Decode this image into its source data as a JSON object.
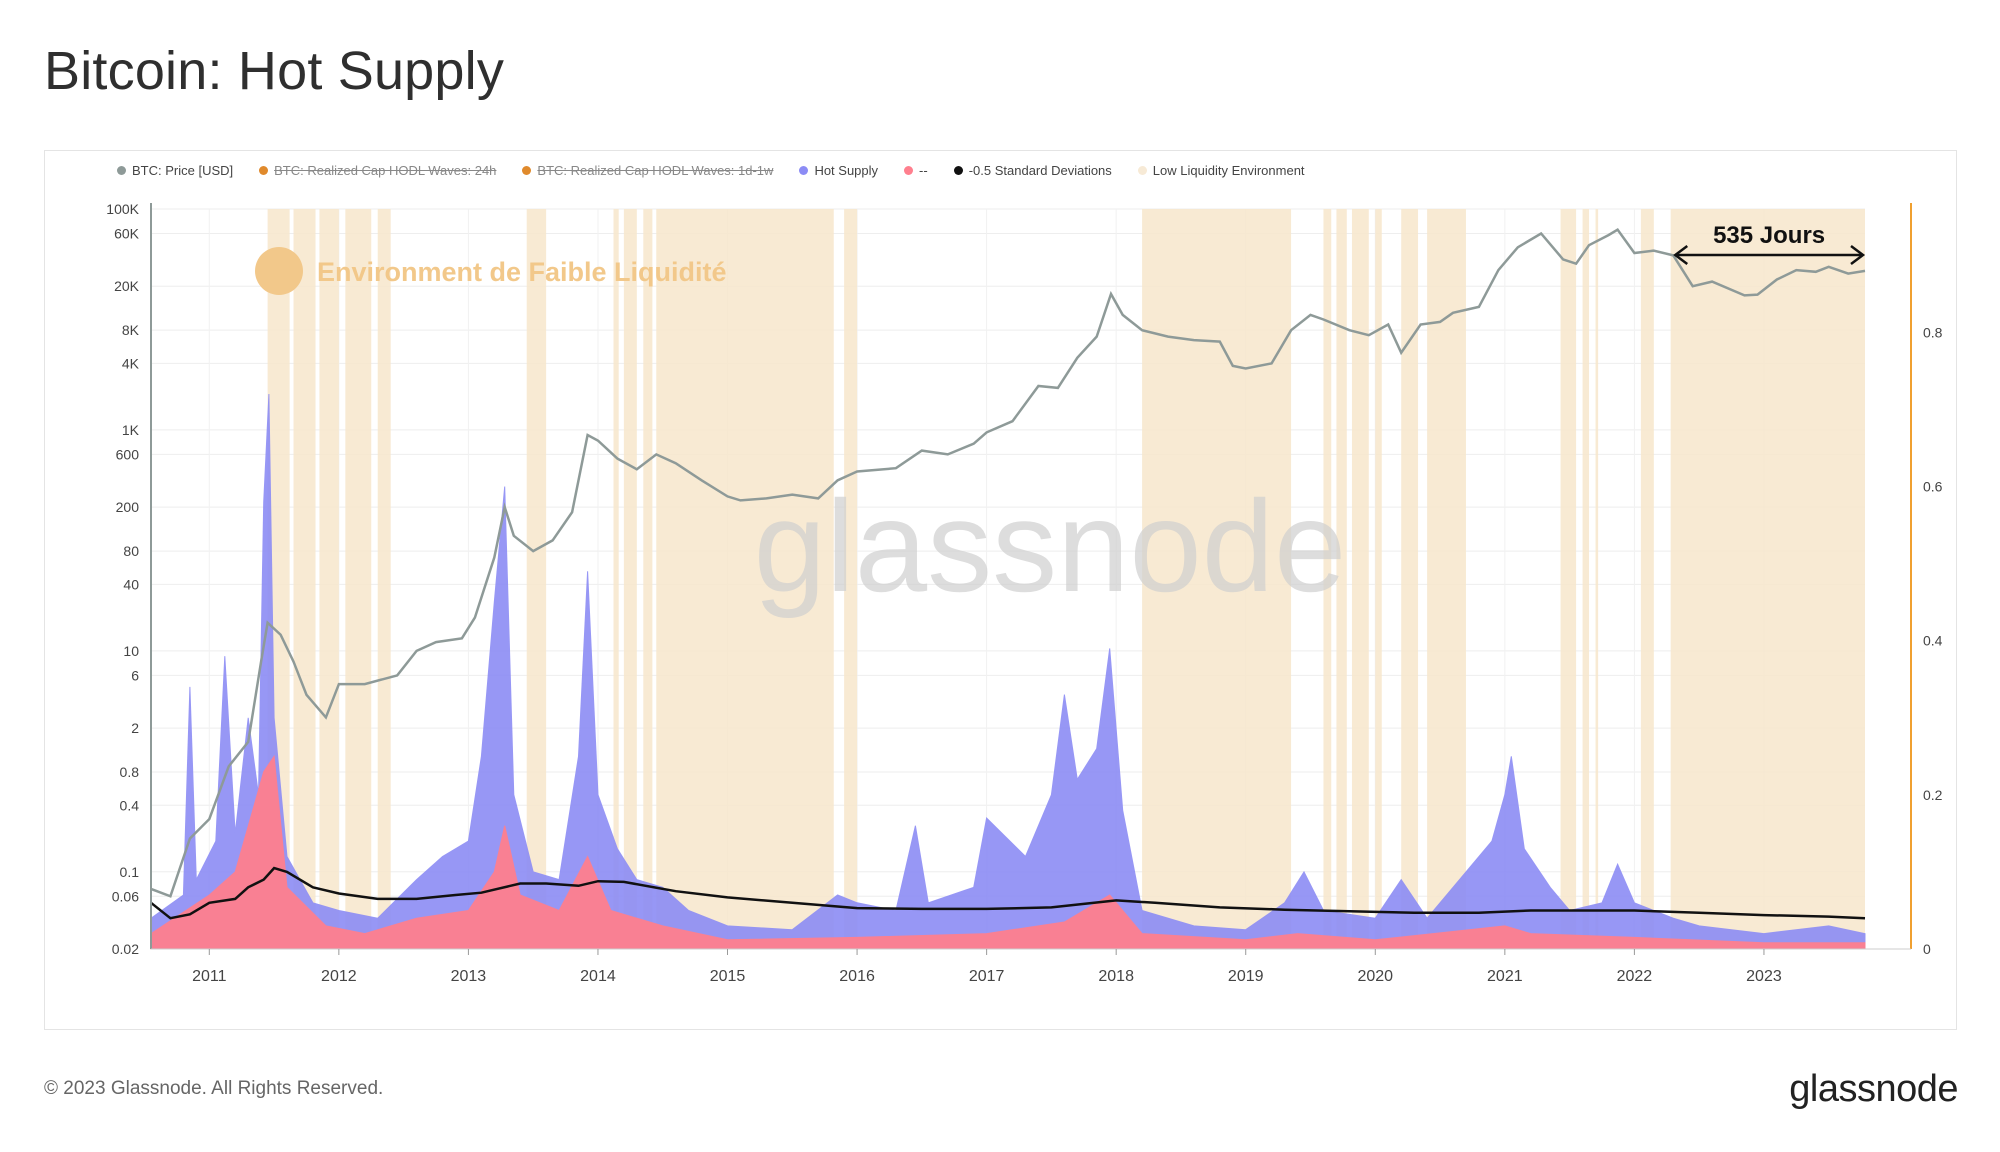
{
  "page": {
    "title": "Bitcoin: Hot Supply",
    "copyright": "© 2023 Glassnode. All Rights Reserved.",
    "logo": "glassnode",
    "watermark": "glassnode"
  },
  "legend": [
    {
      "label": "BTC: Price [USD]",
      "color": "#8e9a98",
      "disabled": false
    },
    {
      "label": "BTC: Realized Cap HODL Waves: 24h",
      "color": "#e08a2c",
      "disabled": true
    },
    {
      "label": "BTC: Realized Cap HODL Waves: 1d-1w",
      "color": "#e08a2c",
      "disabled": true
    },
    {
      "label": "Hot Supply",
      "color": "#8c8cf5",
      "disabled": false
    },
    {
      "label": "--",
      "color": "#ff7f8e",
      "disabled": false
    },
    {
      "label": "-0.5 Standard Deviations",
      "color": "#111111",
      "disabled": false
    },
    {
      "label": "Low Liquidity Environment",
      "color": "#f7ead6",
      "disabled": false
    }
  ],
  "annotations": {
    "low_liquidity_label": "Environment de Faible Liquidité",
    "duration_label": "535 Jours"
  },
  "chart_data": {
    "type": "line",
    "x_axis": {
      "ticks": [
        "2011",
        "2012",
        "2013",
        "2014",
        "2015",
        "2016",
        "2017",
        "2018",
        "2019",
        "2020",
        "2021",
        "2022",
        "2023"
      ],
      "range": [
        2010.55,
        2023.78
      ]
    },
    "y_left": {
      "scale": "log",
      "ticks": [
        "100K",
        "60K",
        "20K",
        "8K",
        "4K",
        "1K",
        "600",
        "200",
        "80",
        "40",
        "10",
        "6",
        "2",
        "0.8",
        "0.4",
        "0.1",
        "0.06",
        "0.02"
      ],
      "tick_values": [
        100000,
        60000,
        20000,
        8000,
        4000,
        1000,
        600,
        200,
        80,
        40,
        10,
        6,
        2,
        0.8,
        0.4,
        0.1,
        0.06,
        0.02
      ],
      "range": [
        0.02,
        100000
      ]
    },
    "y_right": {
      "ticks": [
        "0",
        "0.2",
        "0.4",
        "0.6",
        "0.8"
      ],
      "tick_values": [
        0,
        0.2,
        0.4,
        0.6,
        0.8
      ],
      "range": [
        0,
        0.96
      ]
    },
    "series": [
      {
        "name": "BTC: Price [USD]",
        "axis": "left",
        "color": "#8e9a98",
        "points": [
          [
            2010.55,
            0.07
          ],
          [
            2010.7,
            0.06
          ],
          [
            2010.85,
            0.2
          ],
          [
            2011.0,
            0.3
          ],
          [
            2011.15,
            0.9
          ],
          [
            2011.3,
            1.5
          ],
          [
            2011.4,
            8
          ],
          [
            2011.45,
            18
          ],
          [
            2011.55,
            14
          ],
          [
            2011.65,
            8
          ],
          [
            2011.75,
            4
          ],
          [
            2011.9,
            2.5
          ],
          [
            2012.0,
            5
          ],
          [
            2012.2,
            5
          ],
          [
            2012.45,
            6
          ],
          [
            2012.6,
            10
          ],
          [
            2012.75,
            12
          ],
          [
            2012.95,
            13
          ],
          [
            2013.05,
            20
          ],
          [
            2013.2,
            70
          ],
          [
            2013.28,
            200
          ],
          [
            2013.35,
            110
          ],
          [
            2013.5,
            80
          ],
          [
            2013.65,
            100
          ],
          [
            2013.8,
            180
          ],
          [
            2013.92,
            900
          ],
          [
            2014.0,
            800
          ],
          [
            2014.15,
            550
          ],
          [
            2014.3,
            440
          ],
          [
            2014.45,
            600
          ],
          [
            2014.6,
            500
          ],
          [
            2014.8,
            350
          ],
          [
            2015.0,
            250
          ],
          [
            2015.1,
            230
          ],
          [
            2015.3,
            240
          ],
          [
            2015.5,
            260
          ],
          [
            2015.7,
            240
          ],
          [
            2015.85,
            350
          ],
          [
            2016.0,
            420
          ],
          [
            2016.3,
            450
          ],
          [
            2016.5,
            650
          ],
          [
            2016.7,
            600
          ],
          [
            2016.9,
            750
          ],
          [
            2017.0,
            950
          ],
          [
            2017.2,
            1200
          ],
          [
            2017.4,
            2500
          ],
          [
            2017.55,
            2400
          ],
          [
            2017.7,
            4500
          ],
          [
            2017.85,
            7000
          ],
          [
            2017.96,
            17000
          ],
          [
            2018.05,
            11000
          ],
          [
            2018.2,
            8000
          ],
          [
            2018.4,
            7000
          ],
          [
            2018.6,
            6500
          ],
          [
            2018.8,
            6300
          ],
          [
            2018.9,
            3800
          ],
          [
            2019.0,
            3600
          ],
          [
            2019.2,
            4000
          ],
          [
            2019.35,
            8000
          ],
          [
            2019.5,
            11000
          ],
          [
            2019.6,
            10000
          ],
          [
            2019.8,
            8000
          ],
          [
            2019.95,
            7200
          ],
          [
            2020.1,
            9000
          ],
          [
            2020.2,
            5000
          ],
          [
            2020.35,
            9000
          ],
          [
            2020.5,
            9500
          ],
          [
            2020.6,
            11500
          ],
          [
            2020.8,
            13000
          ],
          [
            2020.95,
            28000
          ],
          [
            2021.1,
            45000
          ],
          [
            2021.28,
            60000
          ],
          [
            2021.45,
            35000
          ],
          [
            2021.55,
            32000
          ],
          [
            2021.65,
            47000
          ],
          [
            2021.8,
            58000
          ],
          [
            2021.87,
            65000
          ],
          [
            2022.0,
            40000
          ],
          [
            2022.15,
            42000
          ],
          [
            2022.3,
            38000
          ],
          [
            2022.45,
            20000
          ],
          [
            2022.6,
            22000
          ],
          [
            2022.85,
            16500
          ],
          [
            2022.95,
            16800
          ],
          [
            2023.1,
            23000
          ],
          [
            2023.25,
            28000
          ],
          [
            2023.4,
            27000
          ],
          [
            2023.5,
            30000
          ],
          [
            2023.65,
            26000
          ],
          [
            2023.78,
            27500
          ]
        ]
      },
      {
        "name": "Hot Supply",
        "axis": "right",
        "color": "#8c8cf5",
        "points": [
          [
            2010.55,
            0.04
          ],
          [
            2010.8,
            0.07
          ],
          [
            2010.85,
            0.34
          ],
          [
            2010.9,
            0.09
          ],
          [
            2011.05,
            0.14
          ],
          [
            2011.12,
            0.38
          ],
          [
            2011.2,
            0.15
          ],
          [
            2011.3,
            0.3
          ],
          [
            2011.38,
            0.2
          ],
          [
            2011.42,
            0.58
          ],
          [
            2011.46,
            0.72
          ],
          [
            2011.5,
            0.3
          ],
          [
            2011.6,
            0.12
          ],
          [
            2011.8,
            0.06
          ],
          [
            2012.0,
            0.05
          ],
          [
            2012.3,
            0.04
          ],
          [
            2012.6,
            0.09
          ],
          [
            2012.8,
            0.12
          ],
          [
            2013.0,
            0.14
          ],
          [
            2013.1,
            0.25
          ],
          [
            2013.2,
            0.45
          ],
          [
            2013.28,
            0.6
          ],
          [
            2013.35,
            0.2
          ],
          [
            2013.5,
            0.1
          ],
          [
            2013.7,
            0.09
          ],
          [
            2013.85,
            0.25
          ],
          [
            2013.92,
            0.49
          ],
          [
            2014.0,
            0.2
          ],
          [
            2014.15,
            0.13
          ],
          [
            2014.3,
            0.09
          ],
          [
            2014.5,
            0.08
          ],
          [
            2014.7,
            0.05
          ],
          [
            2015.0,
            0.03
          ],
          [
            2015.5,
            0.025
          ],
          [
            2015.85,
            0.07
          ],
          [
            2016.0,
            0.06
          ],
          [
            2016.3,
            0.05
          ],
          [
            2016.45,
            0.16
          ],
          [
            2016.55,
            0.06
          ],
          [
            2016.9,
            0.08
          ],
          [
            2017.0,
            0.17
          ],
          [
            2017.3,
            0.12
          ],
          [
            2017.5,
            0.2
          ],
          [
            2017.6,
            0.33
          ],
          [
            2017.7,
            0.22
          ],
          [
            2017.85,
            0.26
          ],
          [
            2017.95,
            0.39
          ],
          [
            2018.05,
            0.18
          ],
          [
            2018.2,
            0.05
          ],
          [
            2018.6,
            0.03
          ],
          [
            2019.0,
            0.025
          ],
          [
            2019.3,
            0.06
          ],
          [
            2019.45,
            0.1
          ],
          [
            2019.6,
            0.05
          ],
          [
            2020.0,
            0.04
          ],
          [
            2020.2,
            0.09
          ],
          [
            2020.4,
            0.04
          ],
          [
            2020.9,
            0.14
          ],
          [
            2021.0,
            0.2
          ],
          [
            2021.05,
            0.25
          ],
          [
            2021.15,
            0.13
          ],
          [
            2021.35,
            0.08
          ],
          [
            2021.5,
            0.05
          ],
          [
            2021.75,
            0.06
          ],
          [
            2021.87,
            0.11
          ],
          [
            2022.0,
            0.06
          ],
          [
            2022.3,
            0.04
          ],
          [
            2022.5,
            0.03
          ],
          [
            2023.0,
            0.02
          ],
          [
            2023.5,
            0.03
          ],
          [
            2023.78,
            0.02
          ]
        ]
      },
      {
        "name": "--",
        "axis": "right",
        "color": "#ff7f8e",
        "points": [
          [
            2010.55,
            0.02
          ],
          [
            2011.0,
            0.07
          ],
          [
            2011.2,
            0.1
          ],
          [
            2011.42,
            0.23
          ],
          [
            2011.5,
            0.25
          ],
          [
            2011.6,
            0.08
          ],
          [
            2011.9,
            0.03
          ],
          [
            2012.2,
            0.02
          ],
          [
            2012.6,
            0.04
          ],
          [
            2013.0,
            0.05
          ],
          [
            2013.2,
            0.1
          ],
          [
            2013.28,
            0.16
          ],
          [
            2013.4,
            0.07
          ],
          [
            2013.7,
            0.05
          ],
          [
            2013.92,
            0.12
          ],
          [
            2014.1,
            0.05
          ],
          [
            2014.5,
            0.03
          ],
          [
            2015.0,
            0.012
          ],
          [
            2016.0,
            0.015
          ],
          [
            2017.0,
            0.02
          ],
          [
            2017.6,
            0.035
          ],
          [
            2017.95,
            0.07
          ],
          [
            2018.2,
            0.02
          ],
          [
            2019.0,
            0.012
          ],
          [
            2019.4,
            0.02
          ],
          [
            2020.0,
            0.012
          ],
          [
            2021.0,
            0.03
          ],
          [
            2021.2,
            0.02
          ],
          [
            2022.0,
            0.015
          ],
          [
            2023.0,
            0.008
          ],
          [
            2023.78,
            0.008
          ]
        ]
      },
      {
        "name": "-0.5 Standard Deviations",
        "axis": "right",
        "color": "#111111",
        "points": [
          [
            2010.55,
            0.06
          ],
          [
            2010.7,
            0.04
          ],
          [
            2010.85,
            0.045
          ],
          [
            2011.0,
            0.06
          ],
          [
            2011.2,
            0.065
          ],
          [
            2011.3,
            0.08
          ],
          [
            2011.42,
            0.09
          ],
          [
            2011.5,
            0.105
          ],
          [
            2011.6,
            0.1
          ],
          [
            2011.8,
            0.08
          ],
          [
            2012.0,
            0.072
          ],
          [
            2012.3,
            0.065
          ],
          [
            2012.6,
            0.065
          ],
          [
            2012.9,
            0.07
          ],
          [
            2013.1,
            0.073
          ],
          [
            2013.4,
            0.085
          ],
          [
            2013.6,
            0.085
          ],
          [
            2013.85,
            0.082
          ],
          [
            2014.0,
            0.088
          ],
          [
            2014.2,
            0.087
          ],
          [
            2014.6,
            0.075
          ],
          [
            2015.0,
            0.067
          ],
          [
            2015.5,
            0.06
          ],
          [
            2016.0,
            0.053
          ],
          [
            2016.5,
            0.052
          ],
          [
            2017.0,
            0.052
          ],
          [
            2017.5,
            0.054
          ],
          [
            2018.0,
            0.063
          ],
          [
            2018.3,
            0.06
          ],
          [
            2018.8,
            0.054
          ],
          [
            2019.3,
            0.051
          ],
          [
            2019.8,
            0.049
          ],
          [
            2020.3,
            0.047
          ],
          [
            2020.8,
            0.047
          ],
          [
            2021.2,
            0.05
          ],
          [
            2021.6,
            0.05
          ],
          [
            2022.0,
            0.05
          ],
          [
            2022.5,
            0.047
          ],
          [
            2023.0,
            0.044
          ],
          [
            2023.5,
            0.042
          ],
          [
            2023.78,
            0.04
          ]
        ]
      }
    ],
    "low_liquidity_periods": [
      [
        2011.45,
        2011.62
      ],
      [
        2011.65,
        2011.82
      ],
      [
        2011.85,
        2012.0
      ],
      [
        2012.05,
        2012.25
      ],
      [
        2012.3,
        2012.4
      ],
      [
        2013.45,
        2013.6
      ],
      [
        2014.12,
        2014.16
      ],
      [
        2014.2,
        2014.3
      ],
      [
        2014.35,
        2014.42
      ],
      [
        2014.45,
        2015.82
      ],
      [
        2015.9,
        2016.0
      ],
      [
        2018.2,
        2019.35
      ],
      [
        2019.6,
        2019.66
      ],
      [
        2019.7,
        2019.78
      ],
      [
        2019.82,
        2019.95
      ],
      [
        2020.0,
        2020.05
      ],
      [
        2020.2,
        2020.33
      ],
      [
        2020.4,
        2020.7
      ],
      [
        2021.43,
        2021.55
      ],
      [
        2021.6,
        2021.65
      ],
      [
        2021.7,
        2021.72
      ],
      [
        2022.05,
        2022.15
      ],
      [
        2022.28,
        2023.78
      ]
    ],
    "duration_arrow": [
      2022.3,
      2023.78
    ]
  }
}
